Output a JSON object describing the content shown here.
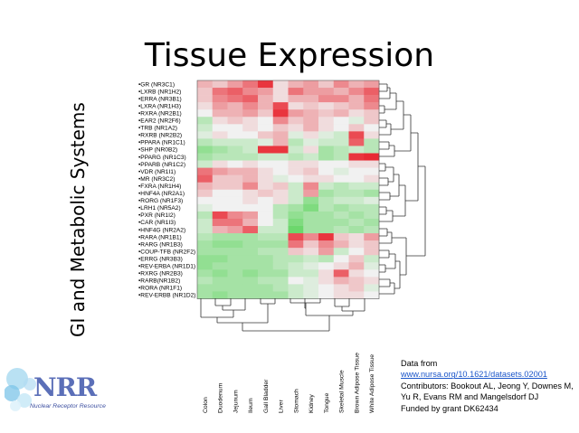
{
  "slide": {
    "title": "Tissue Expression",
    "side_title": "GI and Metabolic Systems"
  },
  "source": {
    "line1": "Data from",
    "link": "www.nursa.org/10.1621/datasets.02001",
    "line3": "Contributors: Bookout AL, Jeong Y, Downes M, Yu R, Evans RM and Mangelsdorf DJ",
    "line4": "Funded by grant DK62434"
  },
  "logo": {
    "text": "NRR",
    "tagline": "Nuclear Receptor Resource",
    "icon": "molecule-logo-icon"
  },
  "colors": {
    "high": "#e8202a",
    "mid": "#f1f1f1",
    "low": "#33cc33"
  },
  "chart_data": {
    "type": "heatmap",
    "rows": [
      "GR (NR3C1)",
      "LXRB (NR1H2)",
      "ERRA (NR3B1)",
      "LXRA (NR1H3)",
      "RXRA (NR2B1)",
      "EAR2 (NR2F6)",
      "TRB (NR1A2)",
      "RXRB (NR2B2)",
      "PPARA (NR1C1)",
      "SHP (NR0B2)",
      "PPARG (NR1C3)",
      "PPARB (NR1C2)",
      "VDR (NR1I1)",
      "MR (NR3C2)",
      "FXRA (NR1H4)",
      "HNF4A (NR2A1)",
      "RORG (NR1F3)",
      "LRH1 (NR5A2)",
      "PXR (NR1I2)",
      "CAR (NR1I3)",
      "HNF4G (NR2A2)",
      "RARA (NR1B1)",
      "RARG (NR1B3)",
      "COUP-TFB (NR2F2)",
      "ERRG (NR3B3)",
      "REV-ERBA (NR1D1)",
      "RXRG (NR2B3)",
      "RARB(NR1B2)",
      "RORA (NR1F1)",
      "REV-ERBB (NR1D2)"
    ],
    "columns": [
      "Colon",
      "Duodenum",
      "Jejunum",
      "Ileum",
      "Gall Bladder",
      "Liver",
      "Stomach",
      "Kidney",
      "Tongue",
      "Skeletal Muscle",
      "Brown Adipose Tissue",
      "White Adipose Tissue"
    ],
    "values": [
      [
        0.3,
        0.2,
        0.4,
        0.6,
        0.9,
        0.1,
        0.3,
        0.4,
        0.2,
        0.5,
        0.3,
        0.4
      ],
      [
        0.2,
        0.6,
        0.7,
        0.5,
        0.4,
        0.1,
        0.6,
        0.4,
        0.4,
        0.3,
        0.5,
        0.7
      ],
      [
        0.2,
        0.5,
        0.6,
        0.7,
        0.3,
        0.1,
        0.3,
        0.3,
        0.5,
        0.5,
        0.3,
        0.6
      ],
      [
        0.1,
        0.4,
        0.3,
        0.5,
        0.3,
        0.8,
        0.1,
        0.2,
        0.1,
        0.2,
        0.3,
        0.5
      ],
      [
        0.0,
        0.3,
        0.3,
        0.4,
        0.2,
        0.9,
        0.4,
        0.3,
        0.2,
        0.3,
        0.1,
        0.2
      ],
      [
        -0.3,
        0.1,
        0.2,
        0.1,
        0.0,
        0.5,
        0.2,
        0.3,
        0.1,
        0.0,
        -0.1,
        0.2
      ],
      [
        -0.2,
        0.0,
        0.0,
        0.1,
        0.0,
        0.2,
        0.1,
        0.3,
        0.1,
        0.0,
        0.2,
        0.0
      ],
      [
        -0.1,
        0.1,
        0.0,
        0.0,
        0.2,
        0.3,
        -0.1,
        0.1,
        -0.1,
        -0.2,
        0.8,
        0.1
      ],
      [
        -0.3,
        -0.2,
        -0.2,
        -0.2,
        -0.1,
        0.3,
        -0.3,
        -0.1,
        -0.2,
        -0.2,
        0.7,
        -0.3
      ],
      [
        -0.5,
        -0.4,
        -0.3,
        -0.2,
        0.9,
        0.9,
        -0.2,
        0.1,
        -0.4,
        -0.3,
        -0.2,
        -0.3
      ],
      [
        -0.4,
        -0.3,
        -0.3,
        -0.3,
        -0.2,
        -0.2,
        -0.3,
        -0.2,
        -0.4,
        -0.3,
        0.9,
        0.95
      ],
      [
        -0.2,
        0.1,
        0.0,
        0.1,
        0.0,
        0.0,
        0.1,
        0.1,
        0.0,
        0.0,
        0.1,
        0.1
      ],
      [
        0.6,
        0.4,
        0.3,
        0.3,
        0.1,
        0.0,
        0.1,
        0.2,
        0.0,
        -0.1,
        0.0,
        0.0
      ],
      [
        0.7,
        0.2,
        0.2,
        0.3,
        0.1,
        -0.1,
        0.0,
        0.1,
        0.1,
        0.0,
        0.0,
        0.1
      ],
      [
        0.3,
        0.2,
        0.2,
        0.5,
        0.1,
        0.2,
        -0.2,
        0.5,
        -0.2,
        -0.3,
        -0.2,
        -0.2
      ],
      [
        0.2,
        0.0,
        0.0,
        0.1,
        0.2,
        0.1,
        -0.2,
        0.4,
        -0.4,
        -0.3,
        -0.3,
        -0.4
      ],
      [
        0.0,
        0.0,
        0.0,
        0.1,
        0.0,
        0.1,
        -0.2,
        -0.5,
        -0.3,
        -0.2,
        -0.2,
        -0.1
      ],
      [
        -0.1,
        0.0,
        0.0,
        0.0,
        0.0,
        -0.3,
        -0.4,
        -0.6,
        -0.3,
        -0.4,
        -0.3,
        -0.3
      ],
      [
        -0.3,
        0.8,
        0.5,
        0.4,
        0.0,
        -0.3,
        -0.5,
        -0.4,
        -0.4,
        -0.3,
        -0.4,
        -0.3
      ],
      [
        -0.2,
        0.6,
        0.6,
        0.3,
        0.0,
        -0.2,
        -0.6,
        -0.4,
        -0.4,
        -0.4,
        -0.3,
        -0.4
      ],
      [
        -0.2,
        0.3,
        0.4,
        0.7,
        -0.2,
        -0.2,
        -0.7,
        -0.4,
        -0.4,
        -0.3,
        -0.4,
        -0.3
      ],
      [
        -0.3,
        -0.4,
        -0.4,
        -0.4,
        -0.3,
        -0.3,
        0.8,
        0.5,
        0.9,
        0.2,
        0.1,
        0.4
      ],
      [
        -0.4,
        -0.5,
        -0.5,
        -0.4,
        -0.4,
        -0.4,
        0.6,
        0.2,
        0.5,
        0.3,
        0.1,
        0.2
      ],
      [
        -0.4,
        -0.4,
        -0.4,
        -0.4,
        -0.3,
        -0.3,
        0.2,
        0.1,
        0.4,
        -0.2,
        0.0,
        0.2
      ],
      [
        -0.5,
        -0.5,
        -0.4,
        -0.4,
        -0.4,
        -0.3,
        -0.3,
        -0.2,
        -0.3,
        0.0,
        0.2,
        -0.2
      ],
      [
        -0.5,
        -0.4,
        -0.4,
        -0.4,
        -0.4,
        -0.3,
        -0.2,
        -0.1,
        0.0,
        0.1,
        0.3,
        -0.1
      ],
      [
        -0.4,
        -0.5,
        -0.4,
        -0.5,
        -0.4,
        -0.4,
        -0.2,
        -0.2,
        0.1,
        0.7,
        0.1,
        0.0
      ],
      [
        -0.3,
        -0.4,
        -0.4,
        -0.4,
        -0.3,
        -0.3,
        0.0,
        -0.1,
        0.1,
        0.3,
        0.2,
        0.1
      ],
      [
        -0.4,
        -0.4,
        -0.4,
        -0.4,
        -0.4,
        -0.3,
        -0.2,
        -0.1,
        0.0,
        0.1,
        0.2,
        -0.1
      ],
      [
        -0.4,
        -0.5,
        -0.4,
        -0.4,
        -0.4,
        -0.4,
        -0.2,
        -0.1,
        0.0,
        0.1,
        0.1,
        0.0
      ]
    ],
    "color_scale": "green-white-red",
    "legend": "none",
    "grid": false
  }
}
